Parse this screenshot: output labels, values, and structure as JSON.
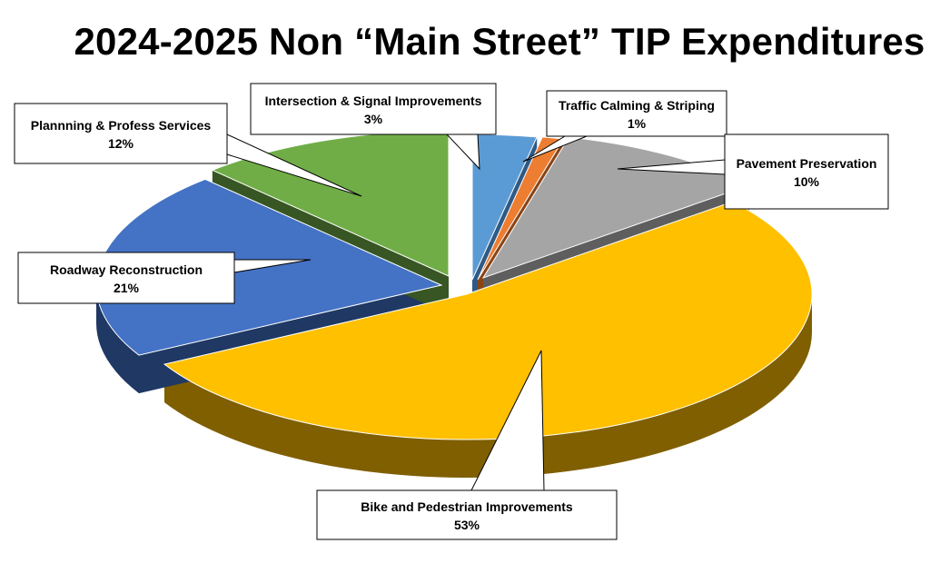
{
  "chart_data": {
    "type": "pie",
    "title": "2024-2025  Non “Main Street” TIP Expenditures",
    "slices": [
      {
        "name": "Intersection & Signal Improvements",
        "percent_label": "3%",
        "value": 3,
        "color": "#5B9BD5",
        "side_color": "#2E5A86"
      },
      {
        "name": "Traffic Calming & Striping",
        "percent_label": "1%",
        "value": 1,
        "color": "#ED7D31",
        "side_color": "#8A4516"
      },
      {
        "name": "Pavement Preservation",
        "percent_label": "10%",
        "value": 10,
        "color": "#A5A5A5",
        "side_color": "#5E5E5E"
      },
      {
        "name": "Bike and Pedestrian Improvements",
        "percent_label": "53%",
        "value": 53,
        "color": "#FFC000",
        "side_color": "#7F5F00"
      },
      {
        "name": "Roadway Reconstruction",
        "percent_label": "21%",
        "value": 21,
        "color": "#4472C4",
        "side_color": "#1F3864"
      },
      {
        "name": "Plannning & Profess Services",
        "percent_label": "12%",
        "value": 12,
        "color": "#70AD47",
        "side_color": "#375623"
      }
    ],
    "legend": "callout labels"
  }
}
